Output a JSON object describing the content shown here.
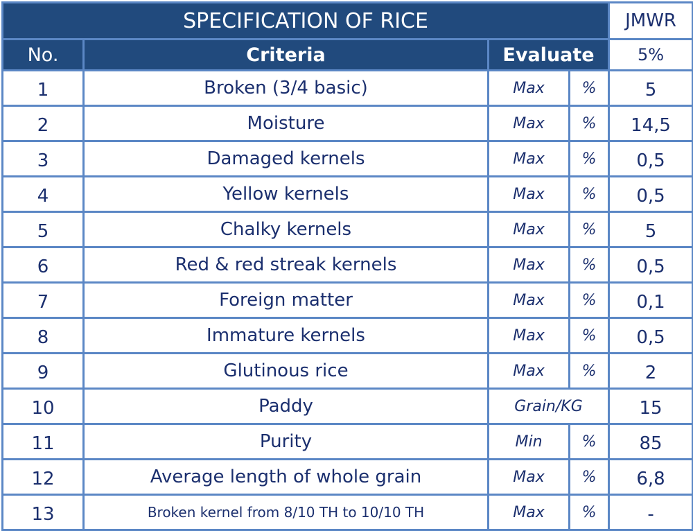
{
  "title": "SPECIFICATION OF RICE",
  "brand_col": "JMWR",
  "headers": {
    "no": "No.",
    "criteria": "Criteria",
    "evaluate": "Evaluate",
    "grade": "5%"
  },
  "rows": [
    {
      "no": "1",
      "criteria": "Broken (3/4 basic)",
      "limit": "Max",
      "unit": "%",
      "value": "5"
    },
    {
      "no": "2",
      "criteria": "Moisture",
      "limit": "Max",
      "unit": "%",
      "value": "14,5"
    },
    {
      "no": "3",
      "criteria": "Damaged kernels",
      "limit": "Max",
      "unit": "%",
      "value": "0,5"
    },
    {
      "no": "4",
      "criteria": "Yellow kernels",
      "limit": "Max",
      "unit": "%",
      "value": "0,5"
    },
    {
      "no": "5",
      "criteria": "Chalky kernels",
      "limit": "Max",
      "unit": "%",
      "value": "5"
    },
    {
      "no": "6",
      "criteria": "Red & red streak kernels",
      "limit": "Max",
      "unit": "%",
      "value": "0,5"
    },
    {
      "no": "7",
      "criteria": "Foreign matter",
      "limit": "Max",
      "unit": "%",
      "value": "0,1"
    },
    {
      "no": "8",
      "criteria": "Immature kernels",
      "limit": "Max",
      "unit": "%",
      "value": "0,5"
    },
    {
      "no": "9",
      "criteria": "Glutinous rice",
      "limit": "Max",
      "unit": "%",
      "value": "2"
    },
    {
      "no": "10",
      "criteria": "Paddy",
      "limit": "Grain/KG",
      "unit": "",
      "value": "15"
    },
    {
      "no": "11",
      "criteria": "Purity",
      "limit": "Min",
      "unit": "%",
      "value": "85"
    },
    {
      "no": "12",
      "criteria": "Average length of whole grain",
      "limit": "Max",
      "unit": "%",
      "value": "6,8"
    },
    {
      "no": "13",
      "criteria": "Broken kernel from 8/10 TH to 10/10 TH",
      "limit": "Max",
      "unit": "%",
      "value": "-"
    }
  ]
}
